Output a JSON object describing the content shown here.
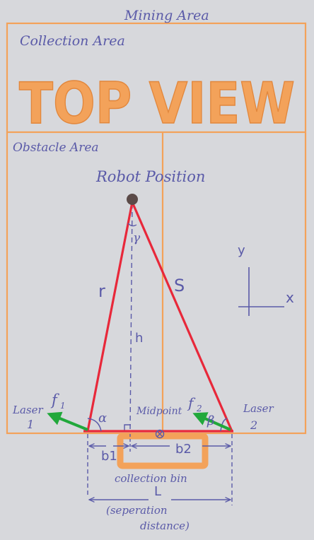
{
  "labels": {
    "mining_area": "Mining Area",
    "collection_area": "Collection Area",
    "top_view": "TOP VIEW",
    "obstacle_area": "Obstacle Area",
    "robot_position": "Robot Position",
    "gamma": "γ",
    "r": "r",
    "s": "S",
    "h": "h",
    "y_axis": "y",
    "x_axis": "x",
    "laser1_line1": "Laser",
    "laser1_line2": "1",
    "laser2_line1": "Laser",
    "laser2_line2": "2",
    "f1": "f",
    "f1_sub": "1",
    "f2": "f",
    "f2_sub": "2",
    "alpha": "α",
    "beta": "β",
    "midpoint": "Midpoint",
    "b1": "b1",
    "b2": "b2",
    "collection_bin": "collection bin",
    "L": "L",
    "separation_line1": "(seperation",
    "separation_line2": "distance)"
  },
  "colors": {
    "paper": "#d7d8dc",
    "orange": "#f3a25a",
    "ink": "#5a5aa8",
    "triangle": "#e8283a",
    "arrow": "#21a83b",
    "robot": "#5b4a48"
  }
}
